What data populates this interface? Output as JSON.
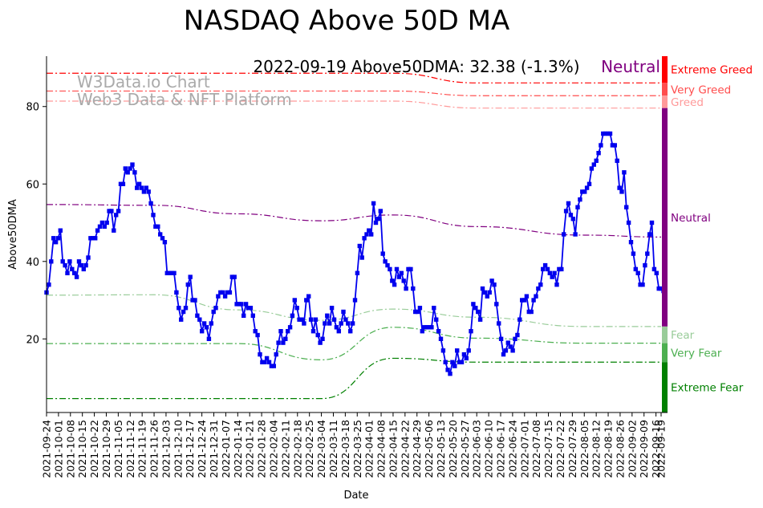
{
  "chart_data": {
    "type": "line",
    "title": "NASDAQ Above 50D MA",
    "xlabel": "Date",
    "ylabel": "Above50DMA",
    "ylim": [
      1,
      93
    ],
    "yticks": [
      20,
      40,
      60,
      80
    ],
    "annotation": "2022-09-19 Above50DMA: 32.38 (-1.3%)",
    "status": "Neutral",
    "watermark": [
      "W3Data.io Chart",
      "Web3 Data & NFT Platform"
    ],
    "colors": {
      "series": "#0000ee",
      "extreme_greed": "#ff0000",
      "very_greed": "#ff4d4d",
      "greed": "#ff9999",
      "neutral": "#800080",
      "fear": "#99cc99",
      "very_fear": "#4caf50",
      "extreme_fear": "#008000"
    },
    "x_tick_labels": [
      "2021-09-24",
      "2021-10-01",
      "2021-10-08",
      "2021-10-15",
      "2021-10-22",
      "2021-10-29",
      "2021-11-05",
      "2021-11-12",
      "2021-11-19",
      "2021-11-26",
      "2021-12-03",
      "2021-12-10",
      "2021-12-17",
      "2021-12-24",
      "2021-12-31",
      "2022-01-07",
      "2022-01-14",
      "2022-01-21",
      "2022-01-28",
      "2022-02-04",
      "2022-02-11",
      "2022-02-18",
      "2022-02-25",
      "2022-03-04",
      "2022-03-11",
      "2022-03-18",
      "2022-03-25",
      "2022-04-01",
      "2022-04-08",
      "2022-04-15",
      "2022-04-22",
      "2022-04-29",
      "2022-05-06",
      "2022-05-13",
      "2022-05-20",
      "2022-05-27",
      "2022-06-03",
      "2022-06-10",
      "2022-06-17",
      "2022-06-24",
      "2022-07-01",
      "2022-07-08",
      "2022-07-15",
      "2022-07-22",
      "2022-07-29",
      "2022-08-05",
      "2022-08-12",
      "2022-08-19",
      "2022-08-26",
      "2022-09-02",
      "2022-09-09",
      "2022-09-16",
      "2022-09-19"
    ],
    "series": [
      {
        "name": "Above50DMA",
        "values": [
          32,
          34,
          40,
          46,
          45,
          46,
          48,
          40,
          39,
          37,
          40,
          38,
          37,
          36,
          40,
          39,
          38,
          39,
          41,
          46,
          46,
          46,
          48,
          49,
          50,
          49,
          50,
          53,
          53,
          48,
          52,
          53,
          60,
          60,
          64,
          63,
          64,
          65,
          63,
          59,
          60,
          59,
          58,
          59,
          58,
          55,
          52,
          49,
          49,
          47,
          46,
          45,
          37,
          37,
          37,
          37,
          32,
          28,
          25,
          27,
          28,
          34,
          36,
          30,
          30,
          26,
          25,
          22,
          24,
          23,
          20,
          24,
          27,
          28,
          31,
          32,
          32,
          31,
          32,
          32,
          36,
          36,
          29,
          29,
          29,
          26,
          29,
          28,
          28,
          26,
          22,
          21,
          16,
          14,
          14,
          15,
          14,
          13,
          13,
          16,
          19,
          22,
          19,
          20,
          22,
          23,
          26,
          30,
          28,
          25,
          25,
          24,
          30,
          31,
          25,
          22,
          25,
          21,
          19,
          20,
          24,
          26,
          24,
          28,
          25,
          23,
          22,
          24,
          27,
          25,
          24,
          22,
          24,
          30,
          37,
          44,
          41,
          46,
          47,
          48,
          47,
          55,
          50,
          51,
          53,
          42,
          40,
          39,
          38,
          35,
          34,
          38,
          36,
          37,
          35,
          33,
          38,
          38,
          33,
          27,
          27,
          28,
          22,
          23,
          23,
          23,
          23,
          28,
          25,
          22,
          20,
          17,
          14,
          12,
          11,
          14,
          13,
          17,
          14,
          14,
          16,
          15,
          17,
          22,
          29,
          28,
          27,
          25,
          33,
          32,
          31,
          32,
          35,
          34,
          29,
          24,
          20,
          16,
          17,
          19,
          18,
          17,
          20,
          21,
          25,
          30,
          30,
          31,
          27,
          27,
          30,
          31,
          33,
          34,
          38,
          39,
          38,
          37,
          36,
          37,
          34,
          38,
          38,
          47,
          53,
          55,
          52,
          51,
          47,
          54,
          56,
          58,
          58,
          59,
          60,
          64,
          65,
          66,
          68,
          70,
          73,
          73,
          73,
          73,
          70,
          70,
          66,
          59,
          58,
          63,
          54,
          50,
          45,
          42,
          38,
          37,
          34,
          34,
          39,
          42,
          47,
          50,
          38,
          37,
          33,
          33,
          32.38
        ]
      }
    ],
    "bands": [
      {
        "name": "Extreme Greed",
        "label": "Extreme Greed",
        "color_key": "extreme_greed",
        "style": "dashdot",
        "values": [
          88.6,
          88.6,
          88.6,
          88.6,
          88.6,
          86.1,
          86.1,
          86.1
        ]
      },
      {
        "name": "Very Greed",
        "label": "Very Greed",
        "color_key": "very_greed",
        "style": "dashdot",
        "values": [
          84.0,
          84.0,
          84.0,
          84.0,
          84.0,
          82.8,
          82.8,
          82.8
        ]
      },
      {
        "name": "Greed",
        "label": "Greed",
        "color_key": "greed",
        "style": "dashdot",
        "values": [
          81.4,
          81.4,
          81.4,
          81.4,
          81.4,
          79.6,
          79.6,
          79.6
        ]
      },
      {
        "name": "Neutral",
        "label": "Neutral",
        "color_key": "neutral",
        "style": "dashdot",
        "values": [
          54.7,
          54.5,
          52.3,
          50.5,
          52.0,
          49.0,
          46.8,
          46.3
        ]
      },
      {
        "name": "Fear",
        "label": "Fear",
        "color_key": "fear",
        "style": "dashdot",
        "values": [
          31.3,
          31.4,
          27.5,
          24.8,
          27.7,
          25.6,
          23.2,
          23.2
        ]
      },
      {
        "name": "Very Fear",
        "label": "Very Fear",
        "color_key": "very_fear",
        "style": "dashdot",
        "values": [
          18.8,
          18.8,
          18.8,
          14.6,
          23.0,
          20.2,
          18.9,
          18.9
        ]
      },
      {
        "name": "Extreme Fear",
        "label": "Extreme Fear",
        "color_key": "extreme_fear",
        "style": "dashdot",
        "values": [
          4.6,
          4.6,
          4.6,
          4.6,
          15.0,
          14.0,
          14.0,
          14.0
        ]
      }
    ],
    "band_x_dates": [
      "2021-09-24",
      "2021-11-26",
      "2022-01-14",
      "2022-03-04",
      "2022-04-15",
      "2022-06-03",
      "2022-08-05",
      "2022-09-19"
    ],
    "zones": [
      {
        "label": "Extreme Greed",
        "color_key": "extreme_greed",
        "from": 86.1,
        "to": 93
      },
      {
        "label": "Very Greed",
        "color_key": "very_greed",
        "from": 82.8,
        "to": 86.1
      },
      {
        "label": "Greed",
        "color_key": "greed",
        "from": 79.6,
        "to": 82.8
      },
      {
        "label": "Neutral",
        "color_key": "neutral",
        "from": 23.2,
        "to": 79.6
      },
      {
        "label": "Fear",
        "color_key": "fear",
        "from": 18.9,
        "to": 23.2
      },
      {
        "label": "Very Fear",
        "color_key": "very_fear",
        "from": 14.0,
        "to": 18.9
      },
      {
        "label": "Extreme Fear",
        "color_key": "extreme_fear",
        "from": 1,
        "to": 14.0
      }
    ]
  }
}
